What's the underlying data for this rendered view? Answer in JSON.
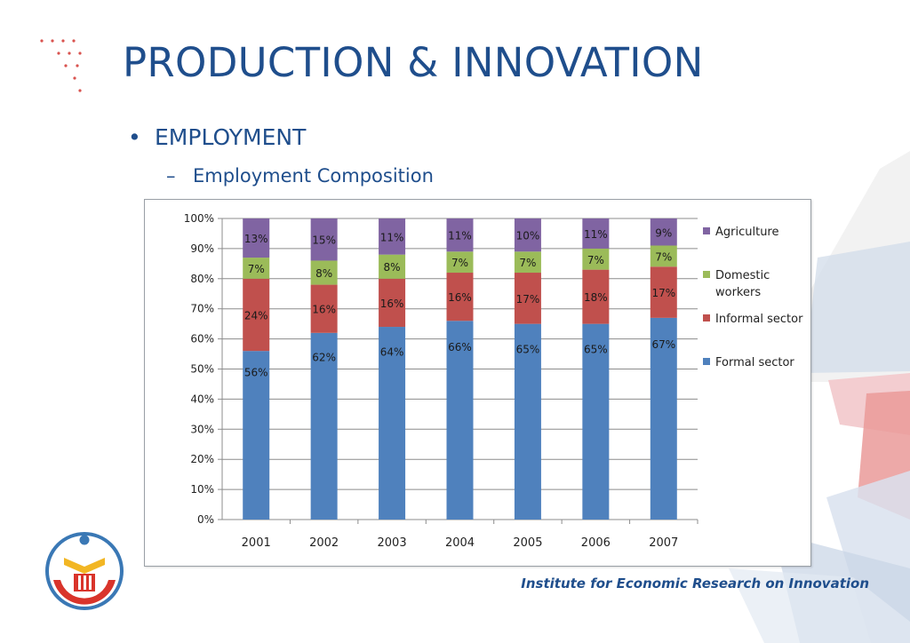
{
  "slide": {
    "title": "PRODUCTION & INNOVATION",
    "bullet": "EMPLOYMENT",
    "bullet_mark": "•",
    "subbullet": "Employment Composition",
    "subbullet_mark": "–",
    "footer": "Institute for Economic Research on Innovation"
  },
  "colors": {
    "title": "#1f4e8c",
    "formal": "#4f81bd",
    "informal": "#c0504d",
    "domestic": "#9bbb59",
    "agriculture": "#8064a2"
  },
  "chart_data": {
    "type": "bar",
    "stacked": true,
    "percent": true,
    "categories": [
      "2001",
      "2002",
      "2003",
      "2004",
      "2005",
      "2006",
      "2007"
    ],
    "y_ticks": [
      "0%",
      "10%",
      "20%",
      "30%",
      "40%",
      "50%",
      "60%",
      "70%",
      "80%",
      "90%",
      "100%"
    ],
    "ylim": [
      0,
      100
    ],
    "grid": true,
    "legend_position": "right",
    "series": [
      {
        "name": "Formal sector",
        "color": "#4f81bd",
        "values": [
          56,
          62,
          64,
          66,
          65,
          65,
          67
        ],
        "labels": [
          "56%",
          "62%",
          "64%",
          "66%",
          "65%",
          "65%",
          "67%"
        ]
      },
      {
        "name": "Informal sector",
        "color": "#c0504d",
        "values": [
          24,
          16,
          16,
          16,
          17,
          18,
          17
        ],
        "labels": [
          "24%",
          "16%",
          "16%",
          "16%",
          "17%",
          "18%",
          "17%"
        ]
      },
      {
        "name": "Domestic workers",
        "color": "#9bbb59",
        "values": [
          7,
          8,
          8,
          7,
          7,
          7,
          7
        ],
        "labels": [
          "7%",
          "8%",
          "8%",
          "7%",
          "7%",
          "7%",
          "7%"
        ]
      },
      {
        "name": "Agriculture",
        "color": "#8064a2",
        "values": [
          13,
          15,
          11,
          11,
          10,
          11,
          9
        ],
        "labels": [
          "13%",
          "15%",
          "11%",
          "11%",
          "10%",
          "11%",
          "9%"
        ]
      }
    ],
    "legend": [
      {
        "lines": [
          "Agriculture"
        ],
        "color": "#8064a2"
      },
      {
        "lines": [
          "Domestic",
          "workers"
        ],
        "color": "#9bbb59"
      },
      {
        "lines": [
          "Informal sector"
        ],
        "color": "#c0504d"
      },
      {
        "lines": [
          "Formal sector"
        ],
        "color": "#4f81bd"
      }
    ]
  }
}
